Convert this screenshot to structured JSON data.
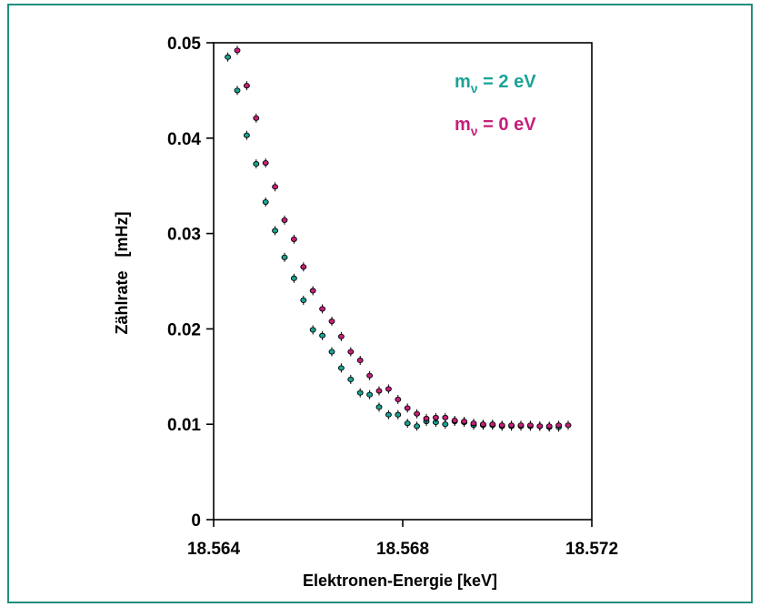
{
  "chart_data": {
    "type": "scatter",
    "xlabel": "Elektronen-Energie [keV]",
    "ylabel": "Zählrate   [mHz]",
    "xlim": [
      18.564,
      18.572
    ],
    "ylim": [
      0,
      0.05
    ],
    "xticks": [
      "18.564",
      "18.568",
      "18.572"
    ],
    "yticks": [
      "0",
      "0.01",
      "0.02",
      "0.03",
      "0.04",
      "0.05"
    ],
    "grid": false,
    "legend_position": "top-right",
    "series": [
      {
        "name": "m_ν = 2 eV",
        "legend_main": "m",
        "legend_sub": "ν",
        "legend_rest": " = 2 eV",
        "color": "#1aa396",
        "x": [
          18.5643,
          18.5645,
          18.5647,
          18.5649,
          18.5651,
          18.5653,
          18.5655,
          18.5657,
          18.5659,
          18.5661,
          18.5663,
          18.5665,
          18.5667,
          18.5669,
          18.5671,
          18.5673,
          18.5675,
          18.5677,
          18.5679,
          18.5681,
          18.5683,
          18.5685,
          18.5687,
          18.5689,
          18.5691,
          18.5693,
          18.5695,
          18.5697,
          18.5699,
          18.5701,
          18.5703,
          18.5705,
          18.5707,
          18.5709,
          18.5711,
          18.5713
        ],
        "y": [
          0.0485,
          0.045,
          0.0403,
          0.0373,
          0.0333,
          0.0303,
          0.0275,
          0.0253,
          0.023,
          0.0199,
          0.0193,
          0.0176,
          0.0159,
          0.0147,
          0.0133,
          0.0131,
          0.0118,
          0.011,
          0.011,
          0.0101,
          0.0098,
          0.0103,
          0.0102,
          0.01,
          0.0103,
          0.0102,
          0.0099,
          0.0099,
          0.0099,
          0.0098,
          0.0098,
          0.0098,
          0.0098,
          0.0098,
          0.0097,
          0.0097
        ]
      },
      {
        "name": "m_ν = 0 eV",
        "legend_main": "m",
        "legend_sub": "ν",
        "legend_rest": " = 0 eV",
        "color": "#c51f79",
        "x": [
          18.5645,
          18.5647,
          18.5649,
          18.5651,
          18.5653,
          18.5655,
          18.5657,
          18.5659,
          18.5661,
          18.5663,
          18.5665,
          18.5667,
          18.5669,
          18.5671,
          18.5673,
          18.5675,
          18.5677,
          18.5679,
          18.5681,
          18.5683,
          18.5685,
          18.5687,
          18.5689,
          18.5691,
          18.5693,
          18.5695,
          18.5697,
          18.5699,
          18.5701,
          18.5703,
          18.5705,
          18.5707,
          18.5709,
          18.5711,
          18.5713,
          18.5715
        ],
        "y": [
          0.0492,
          0.0455,
          0.0421,
          0.0374,
          0.0349,
          0.0314,
          0.0294,
          0.0265,
          0.024,
          0.0221,
          0.0208,
          0.0192,
          0.0176,
          0.0167,
          0.0151,
          0.0135,
          0.0137,
          0.0126,
          0.0117,
          0.0111,
          0.0106,
          0.0107,
          0.0107,
          0.0104,
          0.0103,
          0.0101,
          0.01,
          0.01,
          0.0099,
          0.0099,
          0.0099,
          0.0099,
          0.0098,
          0.0098,
          0.0099,
          0.0099
        ]
      }
    ]
  }
}
